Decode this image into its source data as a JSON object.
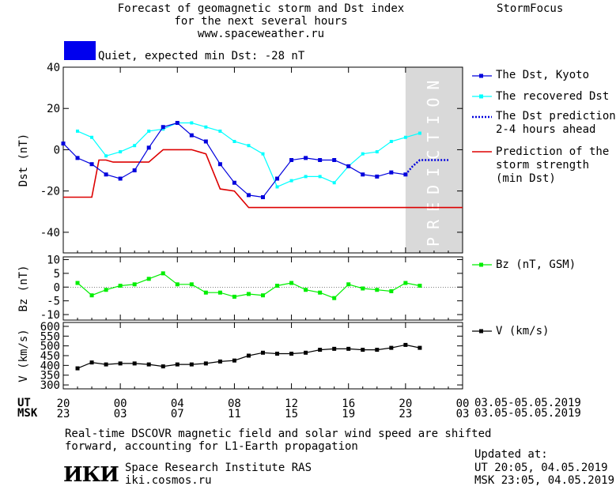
{
  "header": {
    "title_lines": [
      "Forecast of geomagnetic storm and Dst index",
      "for the next several hours",
      "www.spaceweather.ru"
    ],
    "brand": "StormFocus",
    "status_label": "Quiet, expected min Dst: -28 nT",
    "status_color": "#0000ee"
  },
  "colors": {
    "dst": "#0000dd",
    "recovered": "#00ffff",
    "prediction_line": "#0000dd",
    "storm": "#dd0000",
    "bz": "#00ee00",
    "v": "#000000",
    "prediction_band": "#d9d9d9"
  },
  "legend": {
    "dst": "The Dst, Kyoto",
    "recovered": "The recovered Dst",
    "prediction": [
      "The Dst prediction",
      "2-4 hours ahead"
    ],
    "storm": [
      "Prediction of the",
      "storm strength",
      "(min Dst)"
    ],
    "bz": "Bz (nT, GSM)",
    "v": "V (km/s)"
  },
  "prediction_band_label": "PREDICTION",
  "time_axis": {
    "ut_label": "UT",
    "msk_label": "MSK",
    "ut_ticks": [
      "20",
      "00",
      "04",
      "08",
      "12",
      "16",
      "20",
      "00"
    ],
    "msk_ticks": [
      "23",
      "03",
      "07",
      "11",
      "15",
      "19",
      "23",
      "03"
    ],
    "date_range": "03.05-05.05.2019"
  },
  "footer": {
    "note_lines": [
      "Real-time DSCOVR magnetic field and solar wind speed are shifted",
      "forward, accounting for L1-Earth propagation"
    ],
    "logo": "ИКИ",
    "institute": "Space Research Institute RAS",
    "site": "iki.cosmos.ru",
    "updated_label": "Updated at:",
    "updated_ut": "UT   20:05, 04.05.2019",
    "updated_msk": "MSK 23:05, 04.05.2019"
  },
  "chart_data": [
    {
      "type": "line",
      "ylabel": "Dst (nT)",
      "ylim": [
        -50,
        40
      ],
      "yticks": [
        40,
        20,
        0,
        -20,
        -40
      ],
      "x_range_hours": [
        0,
        28
      ],
      "prediction_band_hours": [
        24,
        28
      ],
      "series": [
        {
          "name": "The Dst, Kyoto",
          "x": [
            0,
            1,
            2,
            3,
            4,
            5,
            6,
            7,
            8,
            9,
            10,
            11,
            12,
            13,
            14,
            15,
            16,
            17,
            18,
            19,
            20,
            21,
            22,
            23,
            24
          ],
          "y": [
            3,
            -4,
            -7,
            -12,
            -14,
            -10,
            1,
            11,
            13,
            7,
            4,
            -7,
            -16,
            -22,
            -23,
            -14,
            -5,
            -4,
            -5,
            -5,
            -8,
            -12,
            -13,
            -11,
            -12
          ]
        },
        {
          "name": "The recovered Dst",
          "x": [
            1,
            2,
            3,
            4,
            5,
            6,
            7,
            8,
            9,
            10,
            11,
            12,
            13,
            14,
            15,
            16,
            17,
            18,
            19,
            20,
            21,
            22,
            23,
            24,
            25
          ],
          "y": [
            9,
            6,
            -3,
            -1,
            2,
            9,
            10,
            13,
            13,
            11,
            9,
            4,
            2,
            -2,
            -18,
            -15,
            -13,
            -13,
            -16,
            -8,
            -2,
            -1,
            4,
            6,
            8
          ]
        },
        {
          "name": "The Dst prediction 2-4 hours ahead",
          "x": [
            24,
            24.5,
            25,
            25.5,
            26,
            26.5,
            27
          ],
          "y": [
            -12,
            -8,
            -5,
            -5,
            -5,
            -5,
            -5
          ]
        },
        {
          "name": "Prediction of the storm strength (min Dst)",
          "x": [
            0,
            2,
            2.5,
            3,
            3.5,
            5,
            6,
            7,
            9,
            10,
            11,
            12,
            13,
            14,
            28
          ],
          "y": [
            -23,
            -23,
            -5,
            -5,
            -6,
            -6,
            -6,
            0,
            0,
            -2,
            -19,
            -20,
            -28,
            -28,
            -28
          ]
        }
      ]
    },
    {
      "type": "line",
      "ylabel": "Bz (nT)",
      "ylim": [
        -12,
        11
      ],
      "yticks": [
        10,
        5,
        0,
        -5,
        -10
      ],
      "series": [
        {
          "name": "Bz (nT, GSM)",
          "x": [
            1,
            2,
            3,
            4,
            5,
            6,
            7,
            8,
            9,
            10,
            11,
            12,
            13,
            14,
            15,
            16,
            17,
            18,
            19,
            20,
            21,
            22,
            23,
            24,
            25
          ],
          "y": [
            1.5,
            -3,
            -1,
            0.5,
            1,
            3,
            5,
            1,
            1,
            -2,
            -2,
            -3.5,
            -2.5,
            -3,
            0.5,
            1.5,
            -1,
            -2,
            -4,
            1,
            -0.5,
            -1,
            -1.5,
            1.5,
            0.5
          ]
        }
      ]
    },
    {
      "type": "line",
      "ylabel": "V (km/s)",
      "ylim": [
        280,
        620
      ],
      "yticks": [
        600,
        550,
        500,
        450,
        400,
        350,
        300
      ],
      "series": [
        {
          "name": "V (km/s)",
          "x": [
            1,
            2,
            3,
            4,
            5,
            6,
            7,
            8,
            9,
            10,
            11,
            12,
            13,
            14,
            15,
            16,
            17,
            18,
            19,
            20,
            21,
            22,
            23,
            24,
            25
          ],
          "y": [
            385,
            415,
            405,
            410,
            410,
            405,
            395,
            405,
            405,
            410,
            420,
            425,
            450,
            465,
            460,
            460,
            465,
            480,
            485,
            485,
            480,
            480,
            490,
            505,
            490
          ]
        }
      ]
    }
  ]
}
